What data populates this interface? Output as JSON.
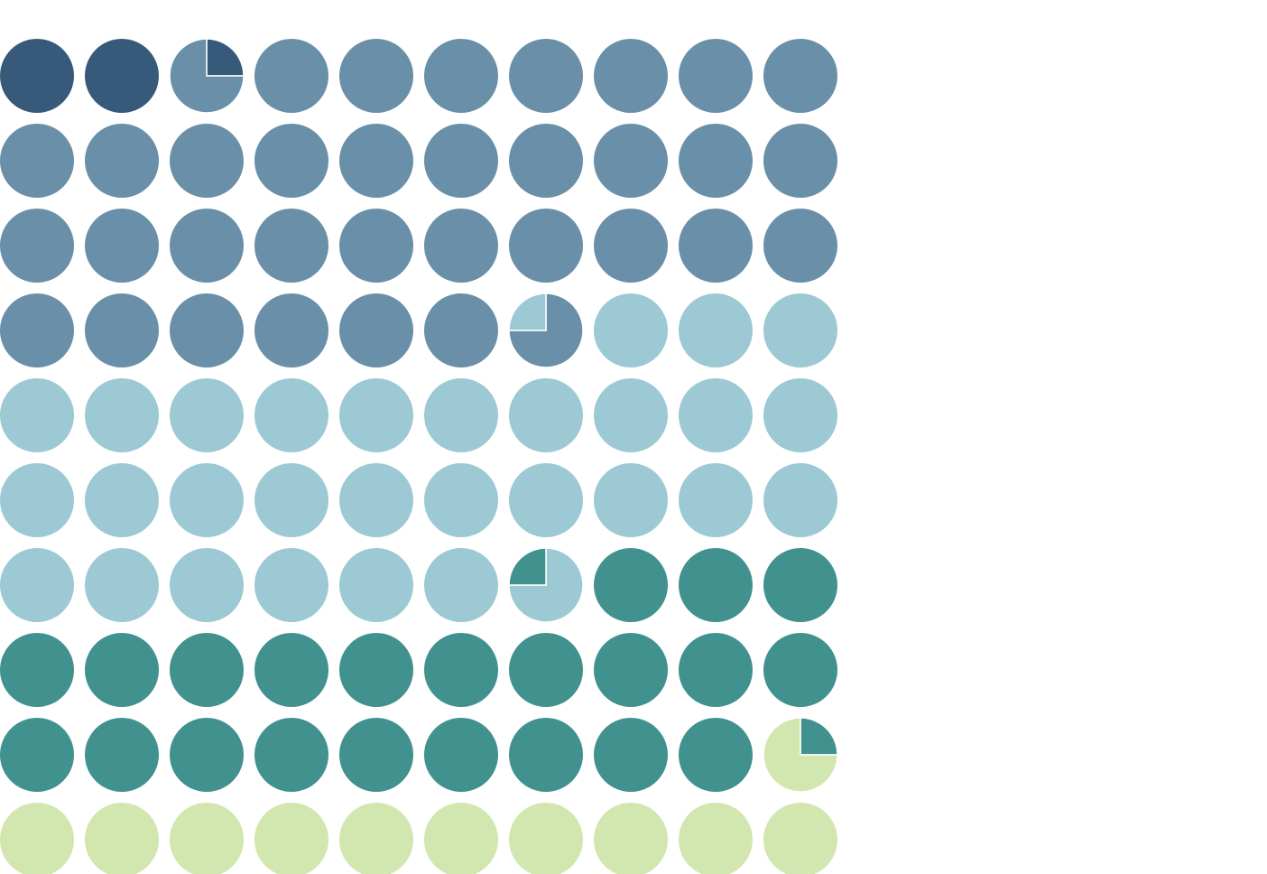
{
  "chart_data": {
    "type": "waffle",
    "grid": {
      "rows": 10,
      "columns": 10,
      "total": 100,
      "unit": "percent"
    },
    "series": [
      {
        "value": 2.25,
        "color": "#375a7a"
      },
      {
        "value": 34.5,
        "color": "#6a8fa8"
      },
      {
        "value": 30.0,
        "color": "#9cc9d3"
      },
      {
        "value": 22.5,
        "color": "#41918f"
      },
      {
        "value": 10.75,
        "color": "#d2e6b0"
      }
    ],
    "title": "",
    "legend": "none",
    "background": "#ffffff"
  }
}
